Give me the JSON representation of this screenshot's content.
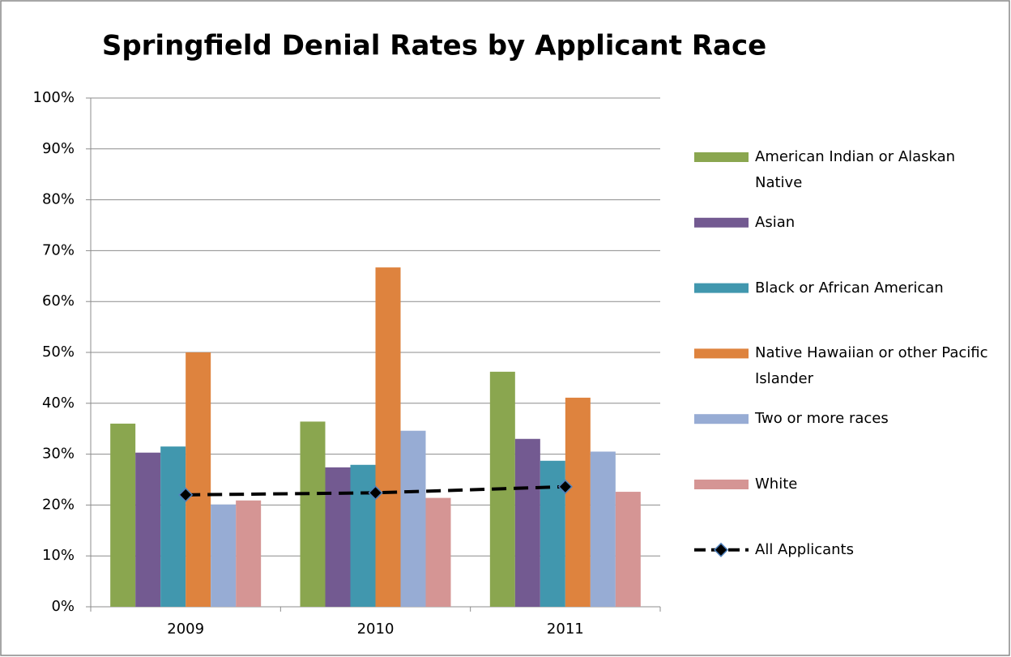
{
  "chart_data": {
    "type": "bar",
    "title": "Springfield Denial Rates by Applicant Race",
    "categories": [
      "2009",
      "2010",
      "2011"
    ],
    "series": [
      {
        "name": "American Indian or Alaskan Native",
        "color": "#8aa64f",
        "values": [
          36.0,
          36.4,
          46.2
        ]
      },
      {
        "name": "Asian",
        "color": "#735a91",
        "values": [
          30.3,
          27.4,
          33.0
        ]
      },
      {
        "name": "Black or African American",
        "color": "#4197ae",
        "values": [
          31.5,
          27.9,
          28.7
        ]
      },
      {
        "name": "Native Hawaiian or other Pacific Islander",
        "color": "#de833e",
        "values": [
          50.0,
          66.7,
          41.1
        ]
      },
      {
        "name": "Two or more races",
        "color": "#97acd4",
        "values": [
          20.1,
          34.6,
          30.5
        ]
      },
      {
        "name": "White",
        "color": "#d59594",
        "values": [
          20.9,
          21.4,
          22.6
        ]
      },
      {
        "name": "All Applicants",
        "type": "line",
        "color": "#000000",
        "values": [
          22.0,
          22.4,
          23.6
        ]
      }
    ],
    "ylim": [
      0,
      100
    ],
    "yticks": [
      {
        "value": 0,
        "label": "0%"
      },
      {
        "value": 10,
        "label": "10%"
      },
      {
        "value": 20,
        "label": "20%"
      },
      {
        "value": 30,
        "label": "30%"
      },
      {
        "value": 40,
        "label": "40%"
      },
      {
        "value": 50,
        "label": "50%"
      },
      {
        "value": 60,
        "label": "60%"
      },
      {
        "value": 70,
        "label": "70%"
      },
      {
        "value": 80,
        "label": "80%"
      },
      {
        "value": 90,
        "label": "90%"
      },
      {
        "value": 100,
        "label": "100%"
      }
    ],
    "grid": true,
    "legend": "right"
  }
}
